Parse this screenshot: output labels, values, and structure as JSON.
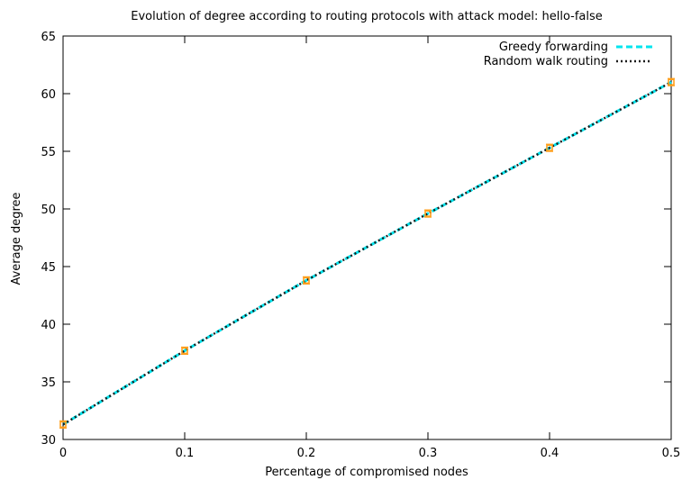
{
  "chart_data": {
    "type": "line",
    "title": "Evolution of degree according to routing protocols with attack model: hello-false",
    "xlabel": "Percentage of compromised nodes",
    "ylabel": "Average degree",
    "xlim": [
      0,
      0.5
    ],
    "ylim": [
      30,
      65
    ],
    "xticks": [
      0,
      0.1,
      0.2,
      0.3,
      0.4,
      0.5
    ],
    "xtick_labels": [
      "0",
      "0.1",
      "0.2",
      "0.3",
      "0.4",
      "0.5"
    ],
    "yticks": [
      30,
      35,
      40,
      45,
      50,
      55,
      60,
      65
    ],
    "ytick_labels": [
      "30",
      "35",
      "40",
      "45",
      "50",
      "55",
      "60",
      "65"
    ],
    "grid": false,
    "legend_position": "top-right",
    "series": [
      {
        "name": "Greedy forwarding",
        "color": "#00e5ee",
        "dash": "dashed",
        "x": [
          0,
          0.1,
          0.2,
          0.3,
          0.4,
          0.5
        ],
        "y": [
          31.3,
          37.7,
          43.8,
          49.6,
          55.3,
          61.0
        ]
      },
      {
        "name": "Random walk routing",
        "color": "#1a1a1a",
        "dash": "dotted",
        "x": [
          0,
          0.1,
          0.2,
          0.3,
          0.4,
          0.5
        ],
        "y": [
          31.3,
          37.7,
          43.8,
          49.6,
          55.3,
          61.0
        ]
      }
    ],
    "marker_color": "#ff9f1c"
  }
}
